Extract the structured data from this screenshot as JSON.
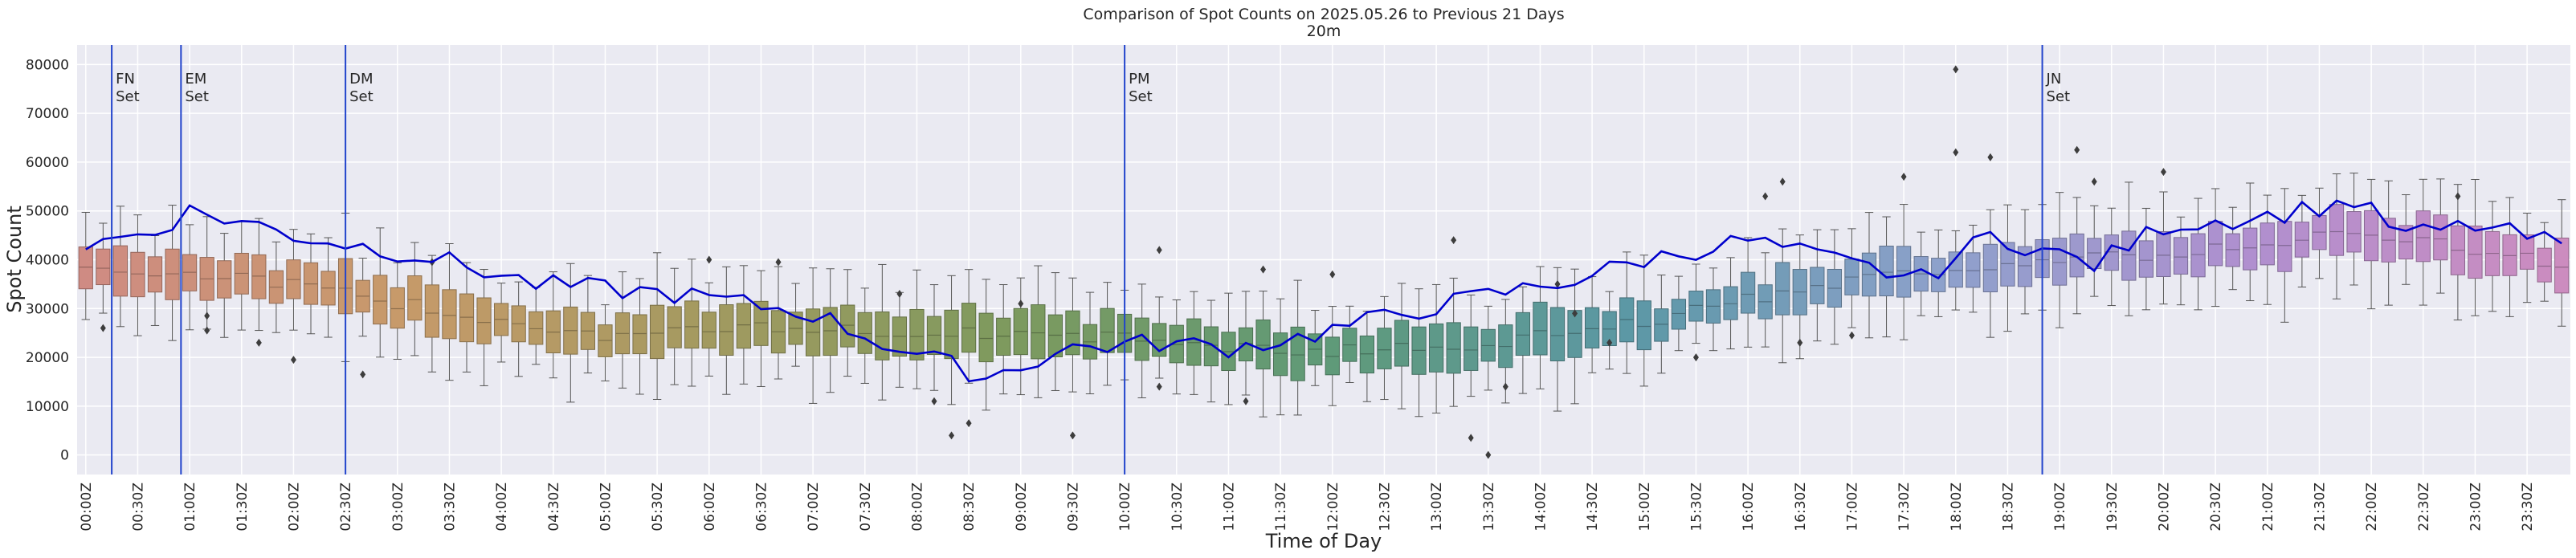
{
  "chart_data": {
    "type": "boxplot+line",
    "title": "Comparison of Spot Counts on 2025.05.26 to Previous 21 Days",
    "subtitle": "20m",
    "xlabel": "Time of Day",
    "ylabel": "Spot Count",
    "ylim": [
      -4000,
      84000
    ],
    "yticks": [
      0,
      10000,
      20000,
      30000,
      40000,
      50000,
      60000,
      70000,
      80000
    ],
    "xtick_labels": [
      "00:00Z",
      "00:30Z",
      "01:00Z",
      "01:30Z",
      "02:00Z",
      "02:30Z",
      "03:00Z",
      "03:30Z",
      "04:00Z",
      "04:30Z",
      "05:00Z",
      "05:30Z",
      "06:00Z",
      "06:30Z",
      "07:00Z",
      "07:30Z",
      "08:00Z",
      "08:30Z",
      "09:00Z",
      "09:30Z",
      "10:00Z",
      "10:30Z",
      "11:00Z",
      "11:30Z",
      "12:00Z",
      "12:30Z",
      "13:00Z",
      "13:30Z",
      "14:00Z",
      "14:30Z",
      "15:00Z",
      "15:30Z",
      "16:00Z",
      "16:30Z",
      "17:00Z",
      "17:30Z",
      "18:00Z",
      "18:30Z",
      "19:00Z",
      "19:30Z",
      "20:00Z",
      "20:30Z",
      "21:00Z",
      "21:30Z",
      "22:00Z",
      "22:30Z",
      "23:00Z",
      "23:30Z"
    ],
    "bins": 144,
    "bin_minutes": 10,
    "grid": true,
    "box_median_anchors": {
      "slot": [
        0,
        10,
        20,
        30,
        40,
        50,
        60,
        70,
        80,
        90,
        100,
        110,
        120,
        130,
        135,
        143
      ],
      "median": [
        38500,
        36000,
        30000,
        24500,
        26000,
        25000,
        24000,
        21000,
        22500,
        27000,
        35000,
        39000,
        41000,
        45000,
        44000,
        39000
      ]
    },
    "comparison_line_anchors": {
      "slot": [
        0,
        4,
        6,
        10,
        12,
        20,
        26,
        34,
        38,
        42,
        46,
        52,
        57,
        62,
        66,
        70,
        76,
        80,
        86,
        90,
        96,
        102,
        106,
        110,
        116,
        120,
        126,
        131,
        134,
        138,
        143
      ],
      "value": [
        43000,
        46000,
        50000,
        47000,
        45000,
        40500,
        35000,
        33000,
        31000,
        29000,
        23000,
        16000,
        22000,
        23000,
        22000,
        24000,
        29000,
        32000,
        36000,
        40000,
        44000,
        39000,
        36000,
        45000,
        39000,
        47000,
        49000,
        52000,
        45000,
        47000,
        43000
      ]
    },
    "vertical_markers": [
      {
        "label": "FN\nSet",
        "time": "00:20Z"
      },
      {
        "label": "EM\nSet",
        "time": "01:00Z"
      },
      {
        "label": "DM\nSet",
        "time": "02:35Z"
      },
      {
        "label": "PM\nSet",
        "time": "10:05Z"
      },
      {
        "label": "JN\nSet",
        "time": "18:55Z"
      }
    ],
    "outliers": [
      {
        "time": "00:10Z",
        "value": 26000
      },
      {
        "time": "01:10Z",
        "value": 25500
      },
      {
        "time": "01:10Z",
        "value": 28500
      },
      {
        "time": "01:40Z",
        "value": 23000
      },
      {
        "time": "02:00Z",
        "value": 19500
      },
      {
        "time": "02:40Z",
        "value": 16500
      },
      {
        "time": "03:20Z",
        "value": 39500
      },
      {
        "time": "06:00Z",
        "value": 40000
      },
      {
        "time": "06:40Z",
        "value": 39500
      },
      {
        "time": "07:50Z",
        "value": 33000
      },
      {
        "time": "08:10Z",
        "value": 11000
      },
      {
        "time": "08:20Z",
        "value": 4000
      },
      {
        "time": "08:30Z",
        "value": 6500
      },
      {
        "time": "09:00Z",
        "value": 31000
      },
      {
        "time": "09:30Z",
        "value": 4000
      },
      {
        "time": "10:20Z",
        "value": 42000
      },
      {
        "time": "10:20Z",
        "value": 14000
      },
      {
        "time": "11:10Z",
        "value": 11000
      },
      {
        "time": "11:20Z",
        "value": 38000
      },
      {
        "time": "12:00Z",
        "value": 37000
      },
      {
        "time": "13:10Z",
        "value": 44000
      },
      {
        "time": "13:20Z",
        "value": 3500
      },
      {
        "time": "13:30Z",
        "value": 0
      },
      {
        "time": "13:40Z",
        "value": 14000
      },
      {
        "time": "14:10Z",
        "value": 35000
      },
      {
        "time": "14:20Z",
        "value": 29000
      },
      {
        "time": "14:40Z",
        "value": 23000
      },
      {
        "time": "15:30Z",
        "value": 20000
      },
      {
        "time": "16:10Z",
        "value": 53000
      },
      {
        "time": "16:20Z",
        "value": 56000
      },
      {
        "time": "16:30Z",
        "value": 23000
      },
      {
        "time": "17:00Z",
        "value": 24500
      },
      {
        "time": "17:30Z",
        "value": 57000
      },
      {
        "time": "18:00Z",
        "value": 79000
      },
      {
        "time": "18:00Z",
        "value": 62000
      },
      {
        "time": "18:20Z",
        "value": 61000
      },
      {
        "time": "19:10Z",
        "value": 62500
      },
      {
        "time": "19:20Z",
        "value": 56000
      },
      {
        "time": "20:00Z",
        "value": 58000
      },
      {
        "time": "22:50Z",
        "value": 53000
      }
    ],
    "palette_hues": [
      "#cf8b83",
      "#c79a6a",
      "#a39a60",
      "#7d9a5e",
      "#5f9a78",
      "#5c98a6",
      "#8ea1cc",
      "#b08fcf",
      "#cc8cbf"
    ],
    "line_color": "#0000cc",
    "marker_color": "#2244cc",
    "background": "#eaeaf2"
  }
}
